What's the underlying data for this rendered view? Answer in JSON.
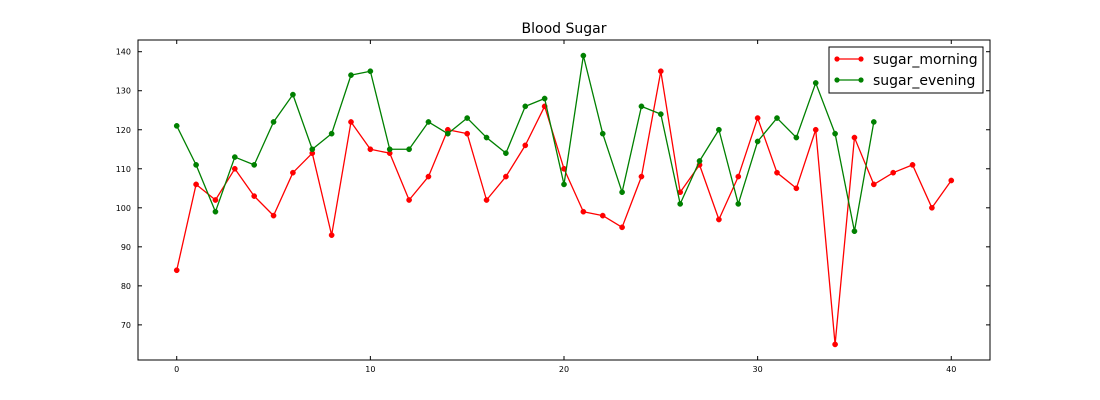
{
  "chart_data": {
    "type": "line",
    "title": "Blood Sugar",
    "xlabel": "",
    "ylabel": "",
    "xlim": [
      -2,
      42
    ],
    "ylim": [
      61,
      143
    ],
    "xticks": [
      0,
      10,
      20,
      30,
      40
    ],
    "yticks": [
      70,
      80,
      90,
      100,
      110,
      120,
      130,
      140
    ],
    "grid": false,
    "legend_position": "top-right",
    "series": [
      {
        "name": "sugar_morning",
        "color": "#ff0000",
        "x": [
          0,
          1,
          2,
          3,
          4,
          5,
          6,
          7,
          8,
          9,
          10,
          11,
          12,
          13,
          14,
          15,
          16,
          17,
          18,
          19,
          20,
          21,
          22,
          23,
          24,
          25,
          26,
          27,
          28,
          29,
          30,
          31,
          32,
          33,
          34,
          35,
          36,
          37,
          38,
          39,
          40
        ],
        "values": [
          84,
          106,
          102,
          110,
          103,
          98,
          109,
          114,
          93,
          122,
          115,
          114,
          102,
          108,
          120,
          119,
          102,
          108,
          116,
          126,
          110,
          99,
          98,
          95,
          108,
          135,
          104,
          111,
          97,
          108,
          123,
          109,
          105,
          120,
          65,
          118,
          106,
          109,
          111,
          100,
          107
        ]
      },
      {
        "name": "sugar_evening",
        "color": "#008000",
        "x": [
          0,
          1,
          2,
          3,
          4,
          5,
          6,
          7,
          8,
          9,
          10,
          11,
          12,
          13,
          14,
          15,
          16,
          17,
          18,
          19,
          20,
          21,
          22,
          23,
          24,
          25,
          26,
          27,
          28,
          29,
          30,
          31,
          32,
          33,
          34,
          35,
          36
        ],
        "values": [
          121,
          111,
          99,
          113,
          111,
          122,
          129,
          115,
          119,
          134,
          135,
          115,
          115,
          122,
          119,
          123,
          118,
          114,
          126,
          128,
          106,
          139,
          119,
          104,
          126,
          124,
          101,
          112,
          120,
          101,
          117,
          123,
          118,
          132,
          119,
          94,
          122
        ]
      }
    ]
  }
}
